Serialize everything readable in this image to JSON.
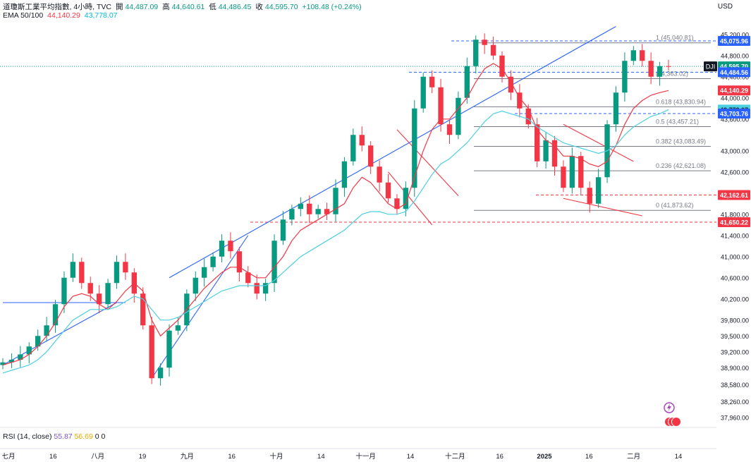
{
  "header": {
    "title": "道瓊斯工業平均指數, 4小時, TVC",
    "open_label": "開",
    "open": "44,487.09",
    "high_label": "高",
    "high": "44,640.61",
    "low_label": "低",
    "low": "44,486.45",
    "close_label": "收",
    "close": "44,595.70",
    "change": "+108.48 (+0.24%)"
  },
  "ema": {
    "label": "EMA 50/100",
    "ema50": "44,140.29",
    "ema100": "43,778.07"
  },
  "rsi": {
    "label": "RSI (14, close)",
    "v1": "55.87",
    "v2": "56.69",
    "v3": "0",
    "v4": "0"
  },
  "currency": "USD",
  "colors": {
    "up": "#089981",
    "down": "#f23645",
    "ema50": "#f23645",
    "ema100": "#4dd0e1",
    "trend": "#2962ff",
    "fib": "#787b86"
  },
  "chart_data": {
    "type": "line",
    "ylim": [
      37850,
      45450
    ],
    "y_ticks": [
      45200,
      44800,
      44400,
      44000,
      43600,
      43000,
      42600,
      42200,
      41800,
      41400,
      41000,
      40600,
      40200,
      39800,
      39500,
      39200,
      38900,
      38580,
      38260,
      37960
    ],
    "y_tick_labels": [
      "45,200.00",
      "44,800.00",
      "44,400.00",
      "44,000.00",
      "43,600.00",
      "43,000.00",
      "42,600.00",
      "42,200.00",
      "41,800.00",
      "41,400.00",
      "41,000.00",
      "40,600.00",
      "40,200.00",
      "39,800.00",
      "39,500.00",
      "39,200.00",
      "38,900.00",
      "38,580.00",
      "38,260.00",
      "37,960.00"
    ],
    "x_tick_labels": [
      "七月",
      "16",
      "八月",
      "19",
      "九月",
      "16",
      "十月",
      "14",
      "十一月",
      "14",
      "十二月",
      "16",
      "2025",
      "16",
      "二月",
      "14"
    ],
    "series": [
      {
        "values": [
          39000,
          39050,
          39150,
          39300,
          39500,
          39700,
          40100,
          40600,
          40900,
          40500,
          40300,
          40100,
          40500,
          40900,
          40700,
          40300,
          39700,
          38700,
          38900,
          39600,
          39700,
          40300,
          40600,
          40800,
          41000,
          41300,
          41100,
          40700,
          40500,
          40300,
          40500,
          41300,
          41700,
          41900,
          42000,
          41800,
          41900,
          41800,
          42300,
          42800,
          43300,
          43100,
          42700,
          42400,
          42100,
          41900,
          42300,
          43800,
          44400,
          44200,
          43500,
          43300,
          44000,
          44600,
          45100,
          45000,
          44800,
          44400,
          44100,
          43800,
          43500,
          42800,
          43200,
          42700,
          42300,
          42900,
          42300,
          42000,
          42500,
          43500,
          44100,
          44700,
          44900,
          44700,
          44400,
          44600,
          44595
        ]
      },
      {
        "values": [
          38950,
          39000,
          39050,
          39150,
          39300,
          39500,
          39750,
          40050,
          40250,
          40300,
          40250,
          40100,
          40000,
          40150,
          40350,
          40500,
          40350,
          39800,
          39500,
          39650,
          39800,
          40000,
          40200,
          40400,
          40550,
          40700,
          40800,
          40800,
          40700,
          40600,
          40600,
          40800,
          41000,
          41300,
          41500,
          41600,
          41700,
          41800,
          41900,
          42000,
          42300,
          42500,
          42400,
          42200,
          42000,
          41900,
          42000,
          42500,
          43000,
          43400,
          43600,
          43600,
          43800,
          44000,
          44300,
          44550,
          44650,
          44550,
          44300,
          44000,
          43800,
          43400,
          43200,
          43100,
          42900,
          42900,
          42850,
          42750,
          42700,
          42800,
          43100,
          43500,
          43800,
          43950,
          44050,
          44100,
          44140
        ]
      },
      {
        "values": [
          38800,
          38850,
          38900,
          38950,
          39050,
          39200,
          39400,
          39600,
          39800,
          39900,
          40000,
          40000,
          40000,
          40050,
          40150,
          40250,
          40200,
          40000,
          39800,
          39800,
          39850,
          39950,
          40050,
          40150,
          40250,
          40350,
          40400,
          40450,
          40450,
          40450,
          40450,
          40550,
          40700,
          40850,
          41000,
          41100,
          41200,
          41300,
          41400,
          41500,
          41650,
          41800,
          41850,
          41850,
          41800,
          41800,
          41850,
          42050,
          42300,
          42550,
          42750,
          42850,
          43000,
          43150,
          43350,
          43550,
          43700,
          43750,
          43700,
          43650,
          43600,
          43450,
          43350,
          43250,
          43150,
          43100,
          43050,
          43000,
          42950,
          43000,
          43100,
          43300,
          43450,
          43550,
          43650,
          43700,
          43778
        ]
      }
    ],
    "price_tags": [
      {
        "value": 45075.96,
        "label": "45,075.96"
      },
      {
        "value": 44595.7,
        "label": "44,595.70",
        "symbol": "DJI"
      },
      {
        "value": 44484.56,
        "label": "44,484.56"
      },
      {
        "value": 44140.29,
        "label": "44,140.29"
      },
      {
        "value": 43778.07,
        "label": "43,778.07"
      },
      {
        "value": 43703.76,
        "label": "43,703.76"
      },
      {
        "value": 42162.61,
        "label": "42,162.61"
      },
      {
        "value": 41650.22,
        "label": "41,650.22"
      }
    ],
    "fib_levels": [
      {
        "value": 45040.81,
        "label": "1 (45,040.81)"
      },
      {
        "value": 44363.02,
        "label": "(44,363.02)"
      },
      {
        "value": 43830.94,
        "label": "0.618 (43,830.94)"
      },
      {
        "value": 43457.21,
        "label": "0.5 (43,457.21)"
      },
      {
        "value": 43083.49,
        "label": "0.382 (43,083.49)"
      },
      {
        "value": 42621.08,
        "label": "0.236 (42,621.08)"
      },
      {
        "value": 41873.62,
        "label": "0 (41,873.62)"
      }
    ],
    "hlines": [
      {
        "value": 45075.96,
        "style": "blue-dashed"
      },
      {
        "value": 44484.56,
        "style": "blue-dashed"
      },
      {
        "value": 43703.76,
        "style": "blue-dashed"
      },
      {
        "value": 42162.61,
        "style": "red-dashed"
      },
      {
        "value": 41650.22,
        "style": "red-dashed"
      }
    ]
  }
}
